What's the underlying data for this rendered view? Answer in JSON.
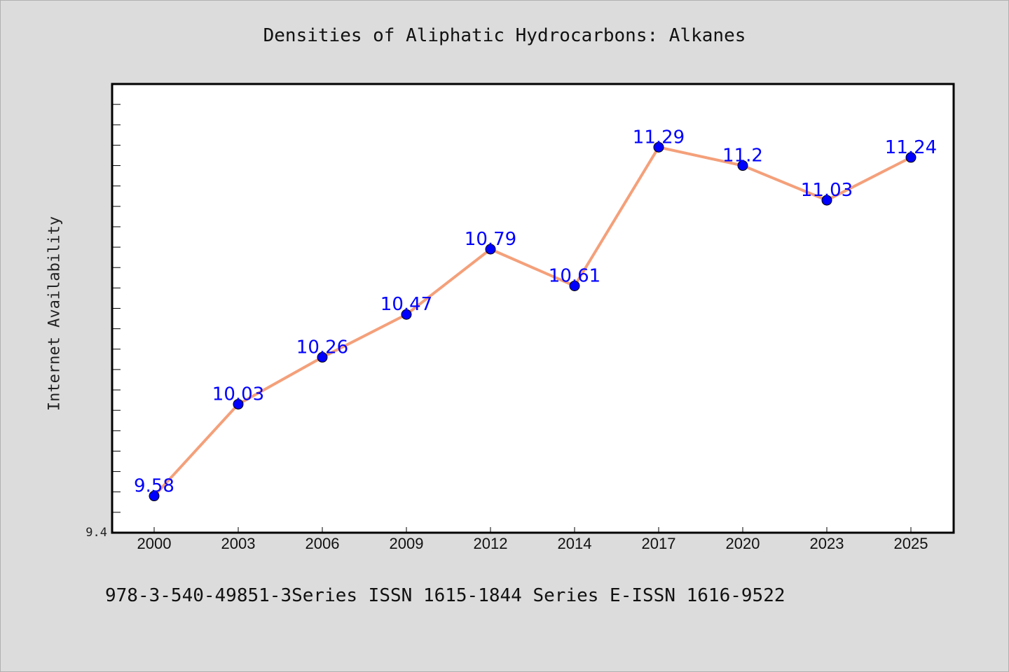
{
  "chart_data": {
    "type": "line",
    "title": "Densities of Aliphatic Hydrocarbons: Alkanes",
    "xlabel": "",
    "ylabel": "Internet Availability",
    "categories": [
      "2000",
      "2003",
      "2006",
      "2009",
      "2012",
      "2014",
      "2017",
      "2020",
      "2023",
      "2025"
    ],
    "series": [
      {
        "values": [
          9.58,
          10.03,
          10.26,
          10.47,
          10.79,
          10.61,
          11.29,
          11.2,
          11.03,
          11.24
        ],
        "labels": [
          "9.58",
          "10.03",
          "10.26",
          "10.47",
          "10.79",
          "10.61",
          "11.29",
          "11.2",
          "11.03",
          "11.24"
        ],
        "line_color": "#f4a07a",
        "marker_color": "#0000ff"
      }
    ],
    "ylim": [
      9.4,
      11.6
    ],
    "ymin_label": "9.4",
    "grid": false,
    "legend": "none"
  },
  "footer": {
    "note": "978-3-540-49851-3Series ISSN 1615-1844 Series E-ISSN 1616-9522"
  },
  "colors": {
    "background": "#dcdcdc",
    "plot_background": "#ffffff",
    "data_label": "#0000ff"
  }
}
